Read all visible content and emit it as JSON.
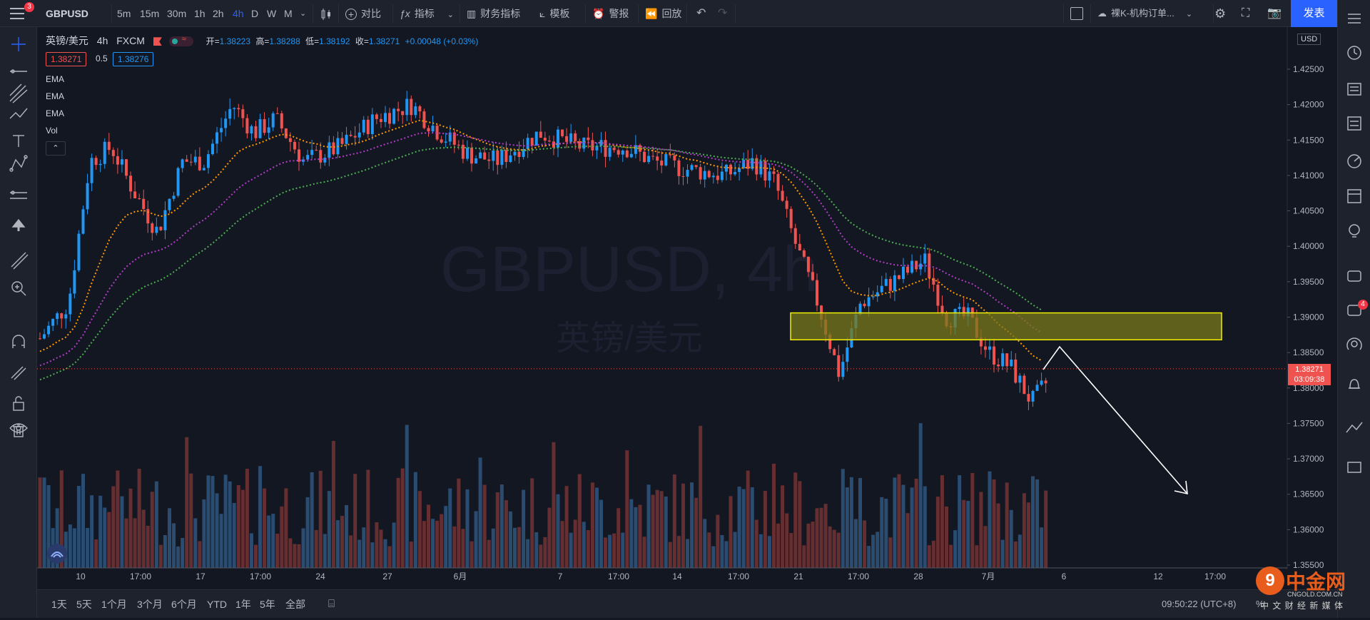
{
  "toolbar": {
    "symbol": "GBPUSD",
    "intervals": [
      "5m",
      "15m",
      "30m",
      "1h",
      "2h",
      "4h",
      "D",
      "W",
      "M"
    ],
    "active_interval": "4h",
    "compare": "对比",
    "indicators": "指标",
    "financials": "财务指标",
    "templates": "模板",
    "alert": "警报",
    "replay": "回放",
    "layout_name": "裸K-机构订单...",
    "publish": "发表",
    "menu_badge": "3"
  },
  "legend": {
    "symbol": "英镑/美元",
    "interval": "4h",
    "exchange": "FXCM",
    "open_label": "开=",
    "open": "1.38223",
    "high_label": "高=",
    "high": "1.38288",
    "low_label": "低=",
    "low": "1.38192",
    "close_label": "收=",
    "close": "1.38271",
    "change": "+0.00048 (+0.03%)",
    "bid": "1.38271",
    "spread": "0.5",
    "ask": "1.38276",
    "indicators": [
      "EMA",
      "EMA",
      "EMA",
      "Vol"
    ]
  },
  "watermark": {
    "line1": "GBPUSD, 4h",
    "line2": "英镑/美元"
  },
  "chart_data": {
    "type": "candlestick",
    "symbol": "GBPUSD",
    "interval": "4h",
    "ylim": [
      1.355,
      1.43
    ],
    "yticks": [
      "1.42500",
      "1.42000",
      "1.41500",
      "1.41000",
      "1.40500",
      "1.40000",
      "1.39500",
      "1.39000",
      "1.38500",
      "1.38000",
      "1.37500",
      "1.37000",
      "1.36500",
      "1.36000",
      "1.35500"
    ],
    "xticks": [
      "10",
      "17:00",
      "17",
      "17:00",
      "24",
      "27",
      "6月",
      "7",
      "17:00",
      "14",
      "17:00",
      "21",
      "17:00",
      "28",
      "7月",
      "6",
      "12",
      "17:00"
    ],
    "currency": "USD",
    "last_price": "1.38271",
    "countdown": "03:09:38",
    "zone": [
      1.3868,
      1.3906
    ],
    "ema_colors": [
      "#ff9800",
      "#b23cc7",
      "#4caf50"
    ],
    "up_color": "#2196f3",
    "down_color": "#ef5350"
  },
  "bottom": {
    "ranges": [
      "1天",
      "5天",
      "1个月",
      "3个月",
      "6个月",
      "YTD",
      "1年",
      "5年",
      "全部"
    ],
    "time": "09:50:22 (UTC+8)",
    "tz_extra": "%"
  },
  "logo": {
    "name": "中金网",
    "url": "CNGOLD.COM.CN",
    "tagline": "中 文 财 经 新 媒 体"
  },
  "alerts_badge": "4"
}
